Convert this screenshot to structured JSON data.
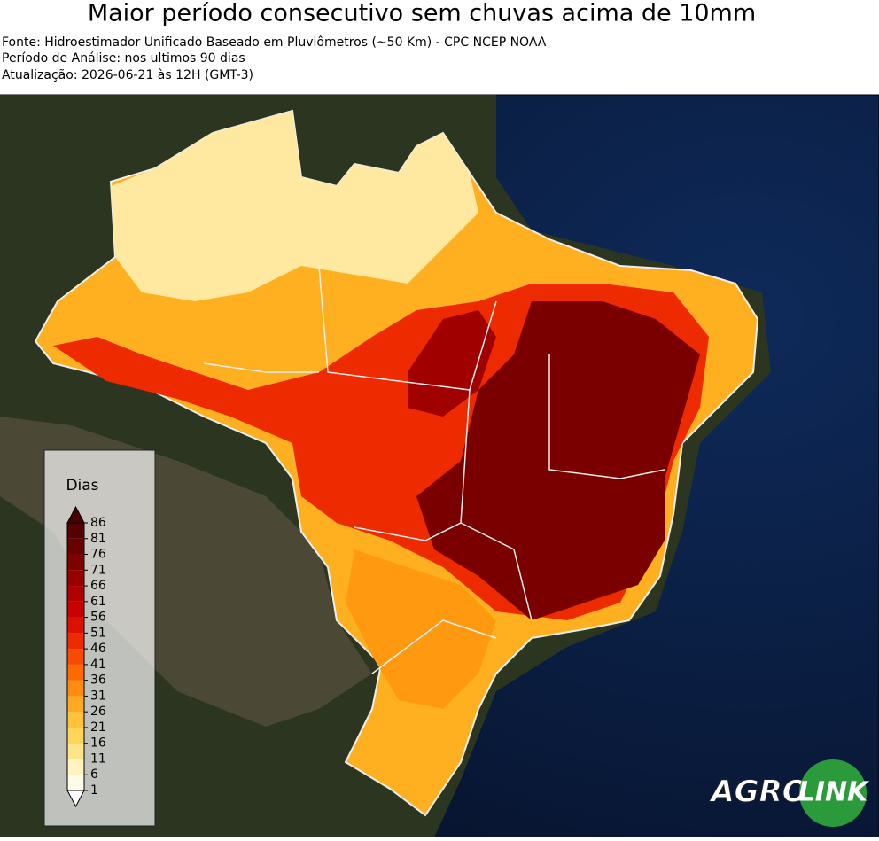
{
  "header": {
    "title": "Maior período consecutivo sem chuvas acima de 10mm",
    "source": "Fonte: Hidroestimador Unificado Baseado em Pluviômetros (~50 Km) - CPC NCEP NOAA",
    "period": "Período de Análise: nos ultimos 90 dias",
    "updated": "Atualização: 2026-06-21 às 12H (GMT-3)"
  },
  "colorbar": {
    "label": "Dias",
    "ticks": [
      1,
      6,
      11,
      16,
      21,
      26,
      31,
      36,
      41,
      46,
      51,
      56,
      61,
      66,
      71,
      76,
      81,
      86
    ],
    "colors": [
      "#fffbe8",
      "#fff3c0",
      "#ffe58a",
      "#ffd65a",
      "#ffc23a",
      "#ffa920",
      "#ff8c10",
      "#ff6a00",
      "#f84a00",
      "#ee2a00",
      "#dd1000",
      "#c80000",
      "#b00000",
      "#980000",
      "#800000",
      "#680000",
      "#550000"
    ],
    "under_color": "#ffffff",
    "over_color": "#4a0000"
  },
  "logo": {
    "left": "AGRO",
    "right": "LINK"
  }
}
